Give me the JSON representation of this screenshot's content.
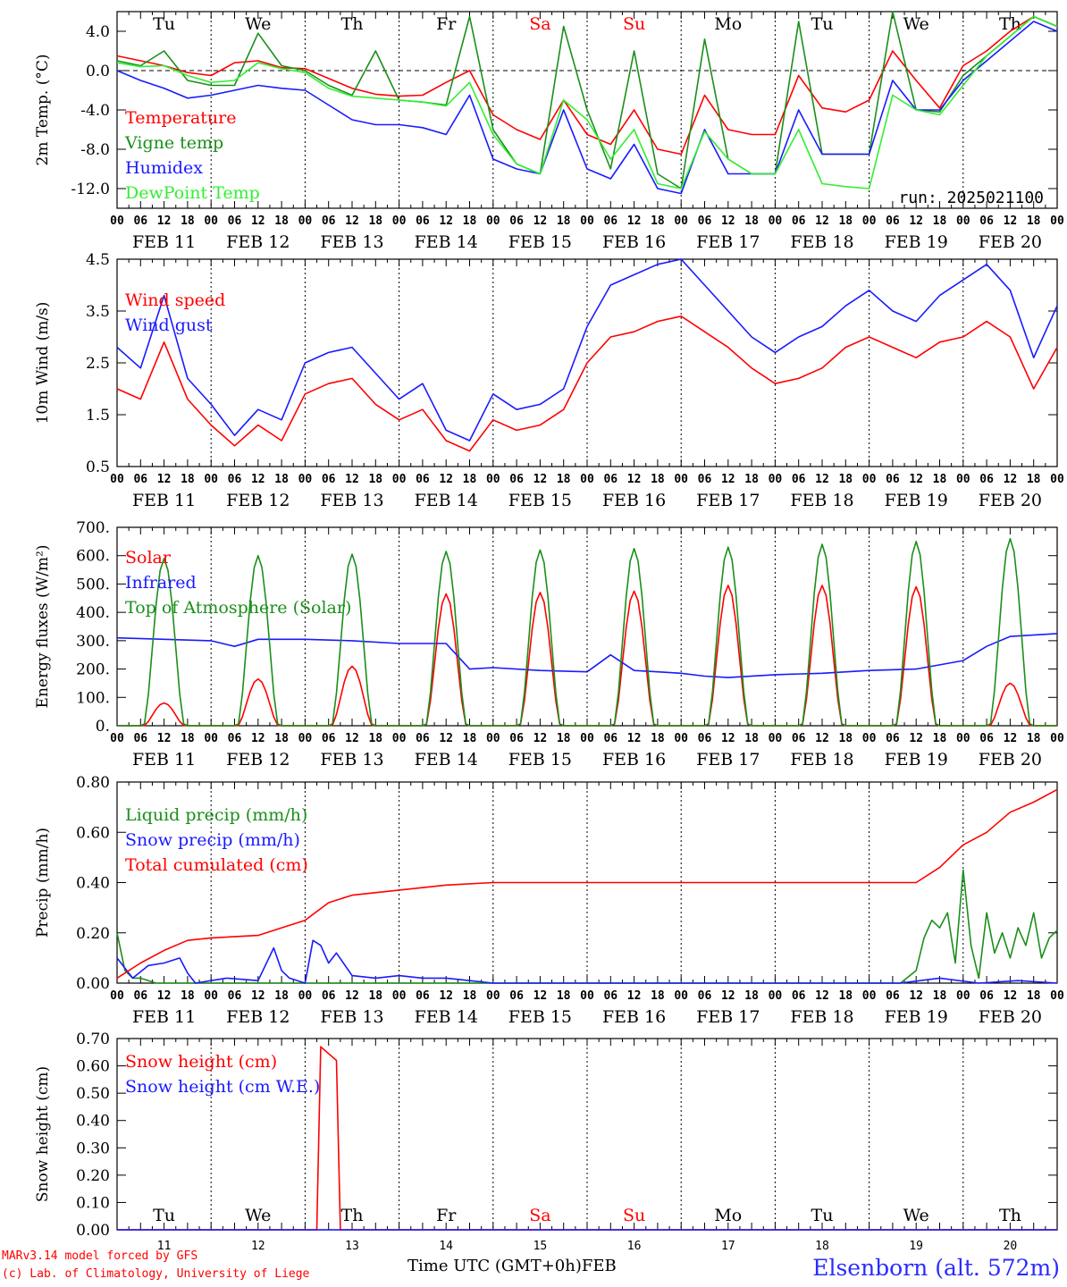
{
  "colors": {
    "red": "#ff0000",
    "green": "#1a8f1a",
    "blue": "#1a1aff",
    "light_green": "#33ee33",
    "weekend": "#ff0000",
    "text": "#000000"
  },
  "x_axis": {
    "hour_labels": [
      "00",
      "06",
      "12",
      "18"
    ],
    "final_label": "00",
    "date_labels": [
      "FEB 11",
      "FEB 12",
      "FEB 13",
      "FEB 14",
      "FEB 15",
      "FEB 16",
      "FEB 17",
      "FEB 18",
      "FEB 19",
      "FEB 20"
    ],
    "weekdays": [
      "Tu",
      "We",
      "Th",
      "Fr",
      "Sa",
      "Su",
      "Mo",
      "Tu",
      "We",
      "Th"
    ],
    "weekday_is_weekend": [
      false,
      false,
      false,
      false,
      true,
      true,
      false,
      false,
      false,
      false
    ],
    "day_numbers": [
      "11",
      "12",
      "13",
      "14",
      "15",
      "16",
      "17",
      "18",
      "19",
      "20"
    ],
    "title": "Time UTC (GMT+0h)",
    "month": "FEB"
  },
  "footer": {
    "credit_line1": "MARv3.14 model forced by GFS",
    "credit_line2": "(c) Lab. of Climatology, University of Liege",
    "station": "Elsenborn (alt. 572m)"
  },
  "chart_data": [
    {
      "type": "line",
      "ylabel": "2m Temp. (°C)",
      "ylim": [
        -14,
        6
      ],
      "yticks": [
        "4.0",
        "0.0",
        "-4.0",
        "-8.0",
        "-12.0"
      ],
      "ytick_values": [
        4,
        0,
        -4,
        -8,
        -12
      ],
      "zero_line": true,
      "run_label": "run: 2025021100",
      "series": [
        {
          "name": "Temperature",
          "color_key": "red",
          "x": [
            0,
            6,
            12,
            18,
            24,
            30,
            36,
            42,
            48,
            54,
            60,
            66,
            72,
            78,
            84,
            90,
            96,
            102,
            108,
            114,
            120,
            126,
            132,
            138,
            144,
            150,
            156,
            162,
            168,
            174,
            180,
            186,
            192,
            198,
            204,
            210,
            216,
            222,
            228,
            234,
            240
          ],
          "values": [
            1.5,
            1.0,
            0.5,
            -0.2,
            -0.5,
            0.8,
            1.0,
            0.3,
            0.2,
            -0.8,
            -1.8,
            -2.4,
            -2.6,
            -2.5,
            -1.2,
            0.0,
            -4.5,
            -6.0,
            -7.0,
            -3.0,
            -6.5,
            -7.5,
            -4.0,
            -8.0,
            -8.5,
            -2.5,
            -6.0,
            -6.5,
            -6.5,
            -0.5,
            -3.8,
            -4.2,
            -3.0,
            2.0,
            -1.0,
            -3.8,
            0.5,
            2.0,
            4.0,
            5.5,
            4.5
          ]
        },
        {
          "name": "Vigne temp",
          "color_key": "green",
          "x": [
            0,
            6,
            12,
            18,
            24,
            30,
            36,
            42,
            48,
            54,
            60,
            66,
            72,
            78,
            84,
            90,
            96,
            102,
            108,
            114,
            120,
            126,
            132,
            138,
            144,
            150,
            156,
            162,
            168,
            174,
            180,
            186,
            192,
            198,
            204,
            210,
            216,
            222,
            228,
            234,
            240
          ],
          "values": [
            1.0,
            0.5,
            2.0,
            -1.0,
            -1.5,
            -1.5,
            3.8,
            0.5,
            0.0,
            -1.5,
            -2.5,
            2.0,
            -3.0,
            -3.2,
            -3.5,
            5.5,
            -6.0,
            -9.5,
            -10.5,
            4.5,
            -4.0,
            -10.0,
            2.0,
            -10.5,
            -12.0,
            3.2,
            -9.0,
            -10.5,
            -10.5,
            5.0,
            -8.5,
            -8.5,
            -8.5,
            6.0,
            -4.0,
            -4.2,
            -0.5,
            1.5,
            3.5,
            5.5,
            4.5
          ]
        },
        {
          "name": "Humidex",
          "color_key": "blue",
          "x": [
            0,
            6,
            12,
            18,
            24,
            30,
            36,
            42,
            48,
            54,
            60,
            66,
            72,
            78,
            84,
            90,
            96,
            102,
            108,
            114,
            120,
            126,
            132,
            138,
            144,
            150,
            156,
            162,
            168,
            174,
            180,
            186,
            192,
            198,
            204,
            210,
            216,
            222,
            228,
            234,
            240
          ],
          "values": [
            0.0,
            -1.0,
            -1.8,
            -2.8,
            -2.5,
            -2.0,
            -1.5,
            -1.8,
            -2.0,
            -3.5,
            -5.0,
            -5.5,
            -5.5,
            -5.8,
            -6.5,
            -2.5,
            -9.0,
            -10.0,
            -10.5,
            -4.0,
            -10.0,
            -11.0,
            -7.5,
            -12.0,
            -12.5,
            -6.0,
            -10.5,
            -10.5,
            -10.5,
            -4.0,
            -8.5,
            -8.5,
            -8.5,
            -1.0,
            -4.0,
            -4.0,
            -1.0,
            1.0,
            3.0,
            5.0,
            4.0
          ]
        },
        {
          "name": "DewPoint Temp",
          "color_key": "light_green",
          "x": [
            0,
            6,
            12,
            18,
            24,
            30,
            36,
            42,
            48,
            54,
            60,
            66,
            72,
            78,
            84,
            90,
            96,
            102,
            108,
            114,
            120,
            126,
            132,
            138,
            144,
            150,
            156,
            162,
            168,
            174,
            180,
            186,
            192,
            198,
            204,
            210,
            216,
            222,
            228,
            234,
            240
          ],
          "values": [
            0.8,
            0.4,
            0.5,
            -0.5,
            -1.2,
            -1.0,
            0.8,
            0.2,
            -0.2,
            -1.8,
            -2.6,
            -2.8,
            -3.0,
            -3.2,
            -3.6,
            -1.2,
            -6.5,
            -9.5,
            -10.5,
            -3.0,
            -5.0,
            -9.0,
            -6.0,
            -11.5,
            -12.0,
            -6.2,
            -9.0,
            -10.5,
            -10.5,
            -6.0,
            -11.5,
            -11.8,
            -12.0,
            -2.5,
            -4.0,
            -4.5,
            -1.5,
            1.5,
            3.5,
            5.5,
            4.5
          ]
        }
      ]
    },
    {
      "type": "line",
      "ylabel": "10m Wind (m/s)",
      "ylim": [
        0.5,
        4.5
      ],
      "yticks": [
        "4.5",
        "3.5",
        "2.5",
        "1.5",
        "0.5"
      ],
      "ytick_values": [
        4.5,
        3.5,
        2.5,
        1.5,
        0.5
      ],
      "series": [
        {
          "name": "Wind speed",
          "color_key": "red",
          "x": [
            0,
            6,
            12,
            18,
            24,
            30,
            36,
            42,
            48,
            54,
            60,
            66,
            72,
            78,
            84,
            90,
            96,
            102,
            108,
            114,
            120,
            126,
            132,
            138,
            144,
            150,
            156,
            162,
            168,
            174,
            180,
            186,
            192,
            198,
            204,
            210,
            216,
            222,
            228,
            234,
            240
          ],
          "values": [
            2.0,
            1.8,
            2.9,
            1.8,
            1.3,
            0.9,
            1.3,
            1.0,
            1.9,
            2.1,
            2.2,
            1.7,
            1.4,
            1.6,
            1.0,
            0.8,
            1.4,
            1.2,
            1.3,
            1.6,
            2.5,
            3.0,
            3.1,
            3.3,
            3.4,
            3.1,
            2.8,
            2.4,
            2.1,
            2.2,
            2.4,
            2.8,
            3.0,
            2.8,
            2.6,
            2.9,
            3.0,
            3.3,
            3.0,
            2.0,
            2.8
          ]
        },
        {
          "name": "Wind gust",
          "color_key": "blue",
          "x": [
            0,
            6,
            12,
            18,
            24,
            30,
            36,
            42,
            48,
            54,
            60,
            66,
            72,
            78,
            84,
            90,
            96,
            102,
            108,
            114,
            120,
            126,
            132,
            138,
            144,
            150,
            156,
            162,
            168,
            174,
            180,
            186,
            192,
            198,
            204,
            210,
            216,
            222,
            228,
            234,
            240
          ],
          "values": [
            2.8,
            2.4,
            3.8,
            2.2,
            1.7,
            1.1,
            1.6,
            1.4,
            2.5,
            2.7,
            2.8,
            2.3,
            1.8,
            2.1,
            1.2,
            1.0,
            1.9,
            1.6,
            1.7,
            2.0,
            3.2,
            4.0,
            4.2,
            4.4,
            4.5,
            4.0,
            3.5,
            3.0,
            2.7,
            3.0,
            3.2,
            3.6,
            3.9,
            3.5,
            3.3,
            3.8,
            4.1,
            4.4,
            3.9,
            2.6,
            3.6
          ]
        }
      ]
    },
    {
      "type": "line",
      "ylabel": "Energy fluxes (W/m²)",
      "ylim": [
        0,
        700
      ],
      "yticks": [
        "700.",
        "600.",
        "500.",
        "400.",
        "300.",
        "200.",
        "100.",
        "0."
      ],
      "ytick_values": [
        700,
        600,
        500,
        400,
        300,
        200,
        100,
        0
      ],
      "series": [
        {
          "name": "Solar",
          "color_key": "red",
          "daily_peaks": [
            80,
            165,
            210,
            465,
            470,
            475,
            495,
            495,
            490,
            150
          ]
        },
        {
          "name": "Infrared",
          "color_key": "blue",
          "x": [
            0,
            12,
            24,
            30,
            36,
            48,
            60,
            72,
            78,
            84,
            90,
            96,
            108,
            120,
            126,
            132,
            138,
            144,
            150,
            156,
            168,
            180,
            192,
            204,
            216,
            222,
            228,
            240
          ],
          "values": [
            310,
            305,
            300,
            280,
            305,
            305,
            300,
            290,
            290,
            290,
            200,
            205,
            195,
            190,
            250,
            195,
            190,
            185,
            175,
            170,
            180,
            185,
            195,
            200,
            230,
            280,
            315,
            325
          ]
        },
        {
          "name": "Top of Atmosphere (Solar)",
          "color_key": "green",
          "daily_peaks": [
            590,
            600,
            605,
            615,
            620,
            625,
            630,
            640,
            650,
            660
          ]
        }
      ]
    },
    {
      "type": "line",
      "ylabel": "Precip (mm/h)",
      "ylim": [
        0,
        0.8
      ],
      "yticks": [
        "0.80",
        "0.60",
        "0.40",
        "0.20",
        "0.00"
      ],
      "ytick_values": [
        0.8,
        0.6,
        0.4,
        0.2,
        0.0
      ],
      "series": [
        {
          "name": "Liquid precip (mm/h)",
          "color_key": "green",
          "x": [
            0,
            2,
            4,
            6,
            8,
            10,
            12,
            200,
            204,
            206,
            208,
            210,
            212,
            214,
            216,
            218,
            220,
            222,
            224,
            226,
            228,
            230,
            232,
            234,
            236,
            238,
            240
          ],
          "values": [
            0.2,
            0.05,
            0.02,
            0.02,
            0.01,
            0.0,
            0.0,
            0.0,
            0.05,
            0.18,
            0.25,
            0.22,
            0.28,
            0.08,
            0.45,
            0.15,
            0.02,
            0.28,
            0.12,
            0.2,
            0.1,
            0.22,
            0.15,
            0.28,
            0.1,
            0.18,
            0.21
          ]
        },
        {
          "name": "Snow precip (mm/h)",
          "color_key": "blue",
          "x": [
            0,
            4,
            8,
            12,
            16,
            18,
            20,
            24,
            28,
            36,
            40,
            42,
            44,
            48,
            50,
            52,
            54,
            56,
            60,
            66,
            72,
            78,
            84,
            90,
            96,
            200,
            210,
            220,
            230,
            240
          ],
          "values": [
            0.1,
            0.02,
            0.07,
            0.08,
            0.1,
            0.04,
            0.0,
            0.01,
            0.02,
            0.01,
            0.14,
            0.05,
            0.02,
            0.0,
            0.17,
            0.15,
            0.08,
            0.12,
            0.03,
            0.02,
            0.03,
            0.02,
            0.02,
            0.01,
            0.0,
            0.0,
            0.02,
            0.0,
            0.01,
            0.0
          ]
        },
        {
          "name": "Total cumulated (cm)",
          "color_key": "red",
          "x": [
            0,
            6,
            12,
            18,
            24,
            36,
            42,
            48,
            54,
            60,
            72,
            84,
            96,
            120,
            144,
            168,
            192,
            204,
            210,
            216,
            222,
            228,
            234,
            240
          ],
          "values": [
            0.02,
            0.08,
            0.13,
            0.17,
            0.18,
            0.19,
            0.22,
            0.25,
            0.32,
            0.35,
            0.37,
            0.39,
            0.4,
            0.4,
            0.4,
            0.4,
            0.4,
            0.4,
            0.46,
            0.55,
            0.6,
            0.68,
            0.72,
            0.77
          ]
        }
      ]
    },
    {
      "type": "line",
      "ylabel": "Snow height (cm)",
      "ylim": [
        0,
        0.7
      ],
      "yticks": [
        "0.70",
        "0.60",
        "0.50",
        "0.40",
        "0.30",
        "0.20",
        "0.10",
        "0.00"
      ],
      "ytick_values": [
        0.7,
        0.6,
        0.5,
        0.4,
        0.3,
        0.2,
        0.1,
        0.0
      ],
      "series": [
        {
          "name": "Snow height (cm)",
          "color_key": "red",
          "x": [
            0,
            51,
            52,
            56,
            57,
            58,
            240
          ],
          "values": [
            0.0,
            0.0,
            0.67,
            0.62,
            0.0,
            0.0,
            0.0
          ]
        },
        {
          "name": "Snow height (cm W.E.)",
          "color_key": "blue",
          "x": [
            0,
            240
          ],
          "values": [
            0.0,
            0.0
          ]
        }
      ]
    }
  ]
}
